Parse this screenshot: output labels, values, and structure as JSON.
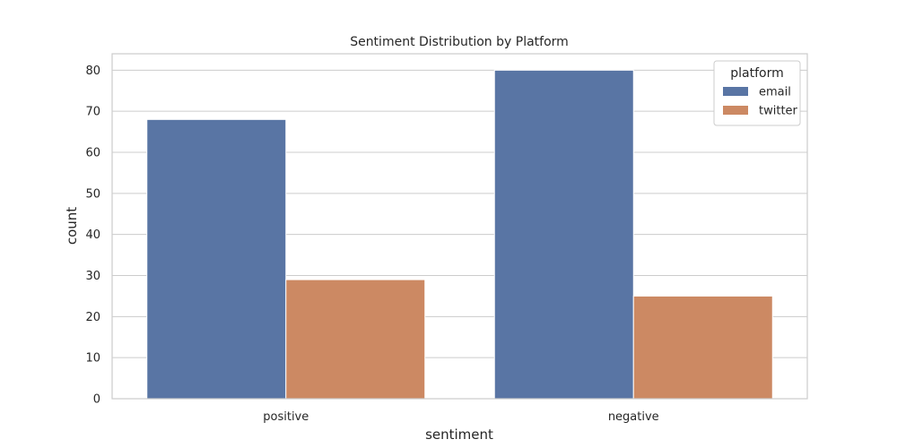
{
  "chart_data": {
    "type": "bar",
    "title": "Sentiment Distribution by Platform",
    "xlabel": "sentiment",
    "ylabel": "count",
    "categories": [
      "positive",
      "negative"
    ],
    "series": [
      {
        "name": "email",
        "values": [
          68,
          80
        ],
        "color": "#5975a4"
      },
      {
        "name": "twitter",
        "values": [
          29,
          25
        ],
        "color": "#cc8963"
      }
    ],
    "ylim": [
      0,
      84
    ],
    "yticks": [
      0,
      10,
      20,
      30,
      40,
      50,
      60,
      70,
      80
    ],
    "grid": true,
    "legend": {
      "title": "platform",
      "placement": "top-right"
    },
    "colors": {
      "grid": "#cccccc",
      "frame": "#cccccc",
      "background": "#ffffff"
    }
  }
}
